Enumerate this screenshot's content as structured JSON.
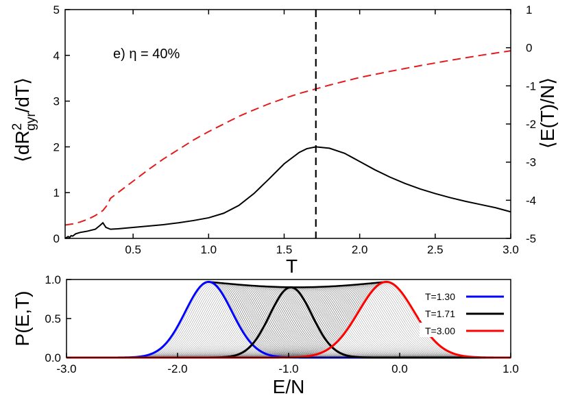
{
  "chart_data": [
    {
      "type": "line",
      "annotation": "e) η = 40%",
      "xlabel": "T",
      "ylabel_left": "⟨dR²gyr/dT⟩",
      "ylabel_left_parts": {
        "pre": "⟨dR",
        "sup": "2",
        "sub": "gyr",
        "post": "/dT⟩"
      },
      "ylabel_right": "⟨E(T)/N⟩",
      "xlim": [
        0.05,
        3.0
      ],
      "ylim_left": [
        0,
        5
      ],
      "ylim_right": [
        -5,
        1
      ],
      "xticks": [
        "0.5",
        "1.0",
        "1.5",
        "2.0",
        "2.5",
        "3.0"
      ],
      "xtick_values": [
        0.5,
        1.0,
        1.5,
        2.0,
        2.5,
        3.0
      ],
      "yticks_left": [
        "0",
        "1",
        "2",
        "3",
        "4",
        "5"
      ],
      "yticks_left_values": [
        0,
        1,
        2,
        3,
        4,
        5
      ],
      "yticks_right": [
        "-5",
        "-4",
        "-3",
        "-2",
        "-1",
        "0",
        "1"
      ],
      "yticks_right_values": [
        -5,
        -4,
        -3,
        -2,
        -1,
        0,
        1
      ],
      "vline_x": 1.71,
      "vline_style": "dashed",
      "series": [
        {
          "axis": "left",
          "color": "#000000",
          "style": "solid",
          "x": [
            0.05,
            0.07,
            0.08,
            0.09,
            0.1,
            0.12,
            0.15,
            0.2,
            0.25,
            0.28,
            0.3,
            0.32,
            0.35,
            0.4,
            0.5,
            0.6,
            0.7,
            0.8,
            0.9,
            1.0,
            1.1,
            1.2,
            1.3,
            1.4,
            1.5,
            1.6,
            1.65,
            1.71,
            1.8,
            1.9,
            2.0,
            2.1,
            2.2,
            2.3,
            2.4,
            2.5,
            2.6,
            2.7,
            2.8,
            2.9,
            3.0
          ],
          "y": [
            0.0,
            0.04,
            0.02,
            0.06,
            0.05,
            0.1,
            0.13,
            0.16,
            0.2,
            0.28,
            0.34,
            0.24,
            0.2,
            0.21,
            0.24,
            0.27,
            0.3,
            0.34,
            0.39,
            0.45,
            0.55,
            0.72,
            0.98,
            1.3,
            1.63,
            1.88,
            1.96,
            2.0,
            1.97,
            1.86,
            1.68,
            1.5,
            1.34,
            1.2,
            1.08,
            0.98,
            0.89,
            0.81,
            0.74,
            0.67,
            0.58
          ]
        },
        {
          "axis": "right",
          "color": "#e41a1c",
          "style": "dashed",
          "x": [
            0.05,
            0.1,
            0.15,
            0.2,
            0.25,
            0.3,
            0.33,
            0.35,
            0.4,
            0.5,
            0.6,
            0.7,
            0.8,
            0.9,
            1.0,
            1.1,
            1.2,
            1.3,
            1.4,
            1.5,
            1.6,
            1.71,
            1.8,
            1.9,
            2.0,
            2.2,
            2.4,
            2.6,
            2.8,
            3.0
          ],
          "y": [
            -4.65,
            -4.62,
            -4.57,
            -4.5,
            -4.4,
            -4.27,
            -4.12,
            -3.95,
            -3.8,
            -3.5,
            -3.2,
            -2.92,
            -2.67,
            -2.42,
            -2.2,
            -2.0,
            -1.8,
            -1.63,
            -1.47,
            -1.33,
            -1.2,
            -1.08,
            -0.98,
            -0.88,
            -0.78,
            -0.62,
            -0.47,
            -0.33,
            -0.2,
            -0.08
          ]
        }
      ]
    },
    {
      "type": "area",
      "xlabel": "E/N",
      "ylabel": "P(E,T)",
      "xlim": [
        -3.0,
        1.0
      ],
      "ylim": [
        0,
        1
      ],
      "xticks": [
        "-3.0",
        "-2.0",
        "-1.0",
        "0.0",
        "1.0"
      ],
      "xtick_values": [
        -3.0,
        -2.0,
        -1.0,
        0.0,
        1.0
      ],
      "yticks": [
        "0.0",
        "0.5",
        "1.0"
      ],
      "ytick_values": [
        0.0,
        0.5,
        1.0
      ],
      "background_curves": {
        "color": "#555555",
        "count": 85,
        "center_range": [
          -1.72,
          -0.12
        ],
        "sigma_range": [
          0.21,
          0.25
        ]
      },
      "envelope_color": "#000000",
      "legend_position": "right",
      "series": [
        {
          "name": "T=1.30",
          "color": "#0000ff",
          "peak_x": -1.72,
          "sigma": 0.21,
          "peak_y": 0.97
        },
        {
          "name": "T=1.71",
          "color": "#000000",
          "peak_x": -0.98,
          "sigma": 0.19,
          "peak_y": 0.9
        },
        {
          "name": "T=3.00",
          "color": "#ff0000",
          "peak_x": -0.12,
          "sigma": 0.25,
          "peak_y": 0.97
        }
      ]
    }
  ]
}
